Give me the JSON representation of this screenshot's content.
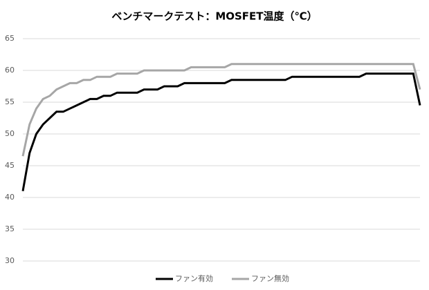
{
  "chart_data": {
    "type": "line",
    "title": "ベンチマークテスト：MOSFET温度（℃）",
    "ylim": [
      30,
      65
    ],
    "yticks": [
      30,
      35,
      40,
      45,
      50,
      55,
      60,
      65
    ],
    "grid": true,
    "legend": "bottom",
    "series": [
      {
        "name": "ファン有効",
        "color": "#000000",
        "values": [
          41,
          47,
          50,
          51.5,
          52.5,
          53.5,
          53.5,
          54,
          54.5,
          55,
          55.5,
          55.5,
          56,
          56,
          56.5,
          56.5,
          56.5,
          56.5,
          57,
          57,
          57,
          57.5,
          57.5,
          57.5,
          58,
          58,
          58,
          58,
          58,
          58,
          58,
          58.5,
          58.5,
          58.5,
          58.5,
          58.5,
          58.5,
          58.5,
          58.5,
          58.5,
          59,
          59,
          59,
          59,
          59,
          59,
          59,
          59,
          59,
          59,
          59,
          59.5,
          59.5,
          59.5,
          59.5,
          59.5,
          59.5,
          59.5,
          59.5,
          54.5
        ]
      },
      {
        "name": "ファン無効",
        "color": "#a6a6a6",
        "values": [
          46.5,
          51.5,
          54,
          55.5,
          56,
          57,
          57.5,
          58,
          58,
          58.5,
          58.5,
          59,
          59,
          59,
          59.5,
          59.5,
          59.5,
          59.5,
          60,
          60,
          60,
          60,
          60,
          60,
          60,
          60.5,
          60.5,
          60.5,
          60.5,
          60.5,
          60.5,
          61,
          61,
          61,
          61,
          61,
          61,
          61,
          61,
          61,
          61,
          61,
          61,
          61,
          61,
          61,
          61,
          61,
          61,
          61,
          61,
          61,
          61,
          61,
          61,
          61,
          61,
          61,
          61,
          57
        ]
      }
    ]
  }
}
